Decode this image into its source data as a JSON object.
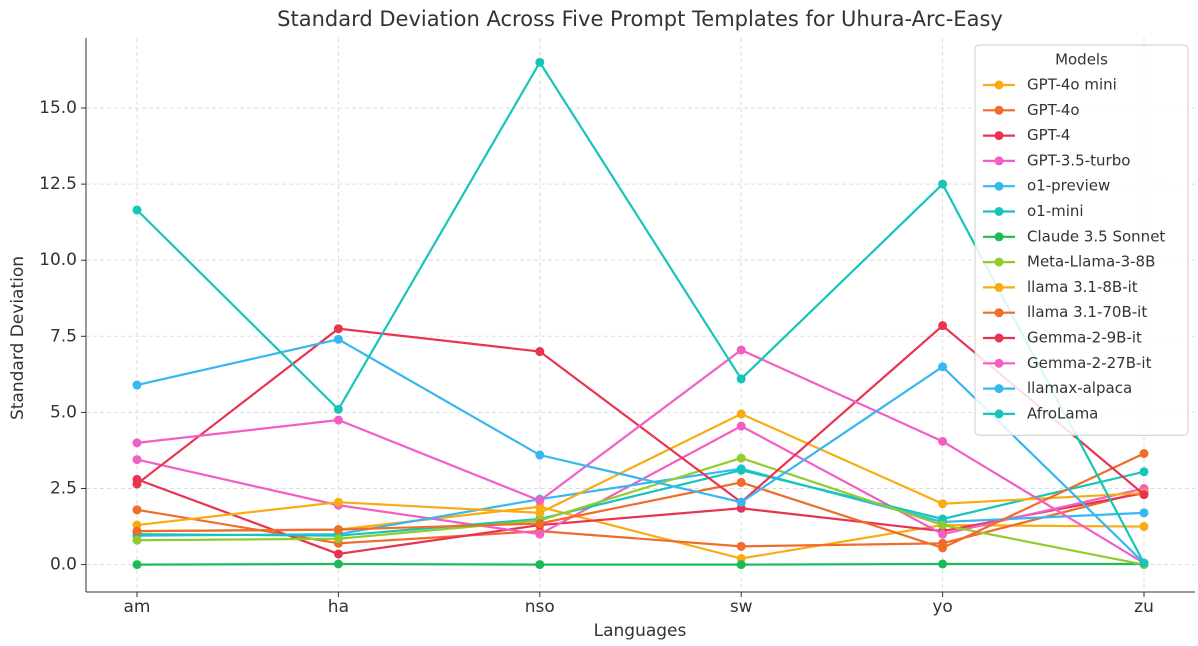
{
  "chart_data": {
    "type": "line",
    "title": "Standard Deviation Across Five Prompt Templates for Uhura-Arc-Easy",
    "x_label": "Languages",
    "y_label": "Standard Deviation",
    "categories": [
      "am",
      "ha",
      "nso",
      "sw",
      "yo",
      "zu"
    ],
    "ylim": [
      -0.9,
      17.3
    ],
    "yticks": [
      {
        "value": 0,
        "label": "0.0"
      },
      2.5,
      {
        "value": 5,
        "label": "5.0"
      },
      7.5,
      {
        "value": 10,
        "label": "10.0"
      },
      12.5,
      {
        "value": 15,
        "label": "15.0"
      }
    ],
    "grid": true,
    "legend_title": "Models",
    "legend_position": "upper right",
    "series": [
      {
        "name": "GPT-4o mini",
        "color": "#f9ac12",
        "values": [
          1.1,
          1.15,
          1.9,
          0.2,
          1.3,
          1.25
        ]
      },
      {
        "name": "GPT-4o",
        "color": "#ef6c2a",
        "values": [
          1.8,
          0.7,
          1.1,
          0.6,
          0.7,
          2.4
        ]
      },
      {
        "name": "GPT-4",
        "color": "#e93350",
        "values": [
          2.8,
          0.35,
          1.3,
          1.85,
          1.1,
          2.35
        ]
      },
      {
        "name": "GPT-3.5-turbo",
        "color": "#f35ec5",
        "values": [
          3.45,
          1.95,
          1.0,
          4.55,
          1.0,
          2.5
        ]
      },
      {
        "name": "o1-preview",
        "color": "#36b7ef",
        "values": [
          0.95,
          1.0,
          2.15,
          3.15,
          1.4,
          1.7
        ]
      },
      {
        "name": "o1-mini",
        "color": "#15c6b8",
        "values": [
          1.0,
          0.95,
          1.5,
          3.1,
          1.5,
          3.05
        ]
      },
      {
        "name": "Claude 3.5 Sonnet",
        "color": "#1cbb58",
        "values": [
          0.0,
          0.02,
          0.0,
          0.0,
          0.02,
          0.02
        ]
      },
      {
        "name": "Meta-Llama-3-8B",
        "color": "#92cb2e",
        "values": [
          0.8,
          0.85,
          1.45,
          3.5,
          1.3,
          0.0
        ]
      },
      {
        "name": "llama 3.1-8B-it",
        "color": "#f9ac12",
        "values": [
          1.3,
          2.05,
          1.7,
          4.95,
          2.0,
          2.35
        ]
      },
      {
        "name": "llama 3.1-70B-it",
        "color": "#ef6c2a",
        "values": [
          1.1,
          1.15,
          1.35,
          2.7,
          0.55,
          3.65
        ]
      },
      {
        "name": "Gemma-2-9B-it",
        "color": "#e93350",
        "values": [
          2.65,
          7.75,
          7.0,
          2.05,
          7.85,
          2.3
        ]
      },
      {
        "name": "Gemma-2-27B-it",
        "color": "#f35ec5",
        "values": [
          4.0,
          4.75,
          2.1,
          7.05,
          4.05,
          0.05
        ]
      },
      {
        "name": "llamax-alpaca",
        "color": "#36b7ef",
        "values": [
          5.9,
          7.4,
          3.6,
          2.05,
          6.5,
          0.05
        ]
      },
      {
        "name": "AfroLama",
        "color": "#15c6b8",
        "values": [
          11.65,
          5.1,
          16.5,
          6.1,
          12.5,
          0.05
        ]
      }
    ]
  }
}
